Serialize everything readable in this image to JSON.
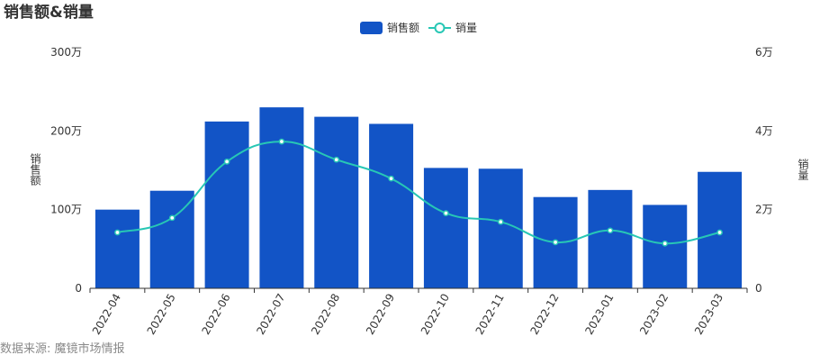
{
  "chart_data": {
    "type": "bar",
    "title": "销售额&销量",
    "categories": [
      "2022-04",
      "2022-05",
      "2022-06",
      "2022-07",
      "2022-08",
      "2022-09",
      "2022-10",
      "2022-11",
      "2022-12",
      "2023-01",
      "2023-02",
      "2023-03"
    ],
    "series": [
      {
        "name": "销售额",
        "type": "bar",
        "axis": "left",
        "color": "#1254c6",
        "values": [
          1000000,
          1240000,
          2120000,
          2300000,
          2180000,
          2090000,
          1530000,
          1520000,
          1160000,
          1250000,
          1060000,
          1480000
        ]
      },
      {
        "name": "销量",
        "type": "line",
        "axis": "right",
        "color": "#27c7b5",
        "smooth": true,
        "values": [
          14200,
          17900,
          32200,
          37300,
          32700,
          27900,
          19100,
          16900,
          11700,
          14700,
          11400,
          14200
        ]
      }
    ],
    "y_left": {
      "label": "销售额",
      "range": [
        0,
        3000000
      ],
      "ticks": [
        0,
        1000000,
        2000000,
        3000000
      ],
      "tick_labels": [
        "0",
        "100万",
        "200万",
        "300万"
      ]
    },
    "y_right": {
      "label": "销量",
      "range": [
        0,
        60000
      ],
      "ticks": [
        0,
        20000,
        40000,
        60000
      ],
      "tick_labels": [
        "0",
        "2万",
        "4万",
        "6万"
      ]
    },
    "xlabel": "",
    "grid": false,
    "legend": "top-center"
  },
  "footer": {
    "source": "数据来源: 魔镜市场情报"
  }
}
